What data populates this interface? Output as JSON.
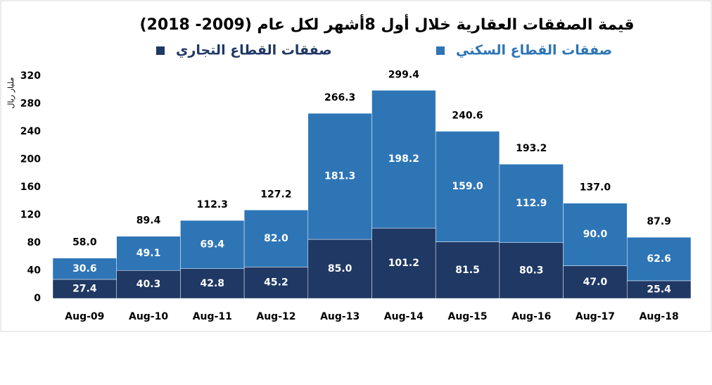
{
  "chart_data": {
    "type": "stacked_bar",
    "title": "قيمة الصفقات العقارية خلال أول 8أشهر لكل عام (2009- 2018)",
    "y_label": "مليار ريال",
    "categories": [
      "Aug-09",
      "Aug-10",
      "Aug-11",
      "Aug-12",
      "Aug-13",
      "Aug-14",
      "Aug-15",
      "Aug-16",
      "Aug-17",
      "Aug-18"
    ],
    "series": [
      {
        "name": "صفقات القطاع التجاري",
        "color": "#1f3864",
        "values": [
          27.4,
          40.3,
          42.8,
          45.2,
          85,
          101.2,
          81.5,
          80.3,
          47,
          25.4
        ],
        "value_labels": [
          "27.4",
          "40.3",
          "42.8",
          "45.2",
          "85.0",
          "101.2",
          "81.5",
          "80.3",
          "47.0",
          "25.4"
        ]
      },
      {
        "name": "صفقات القطاع السكني",
        "color": "#2e75b6",
        "values": [
          30.6,
          49.1,
          69.4,
          82,
          181.3,
          198.2,
          159,
          112.9,
          90,
          62.6
        ],
        "value_labels": [
          "30.6",
          "49.1",
          "69.4",
          "82.0",
          "181.3",
          "198.2",
          "159.0",
          "112.9",
          "90.0",
          "62.6"
        ]
      }
    ],
    "totals": [
      58,
      89.4,
      112.3,
      127.2,
      266.3,
      299.4,
      240.6,
      193.2,
      137,
      87.9
    ],
    "total_labels": [
      "58.0",
      "89.4",
      "112.3",
      "127.2",
      "266.3",
      "299.4",
      "240.6",
      "193.2",
      "137.0",
      "87.9"
    ],
    "ylim": [
      0,
      320
    ],
    "yticks": [
      0,
      40,
      80,
      120,
      160,
      200,
      240,
      280,
      320
    ],
    "grid": false
  }
}
